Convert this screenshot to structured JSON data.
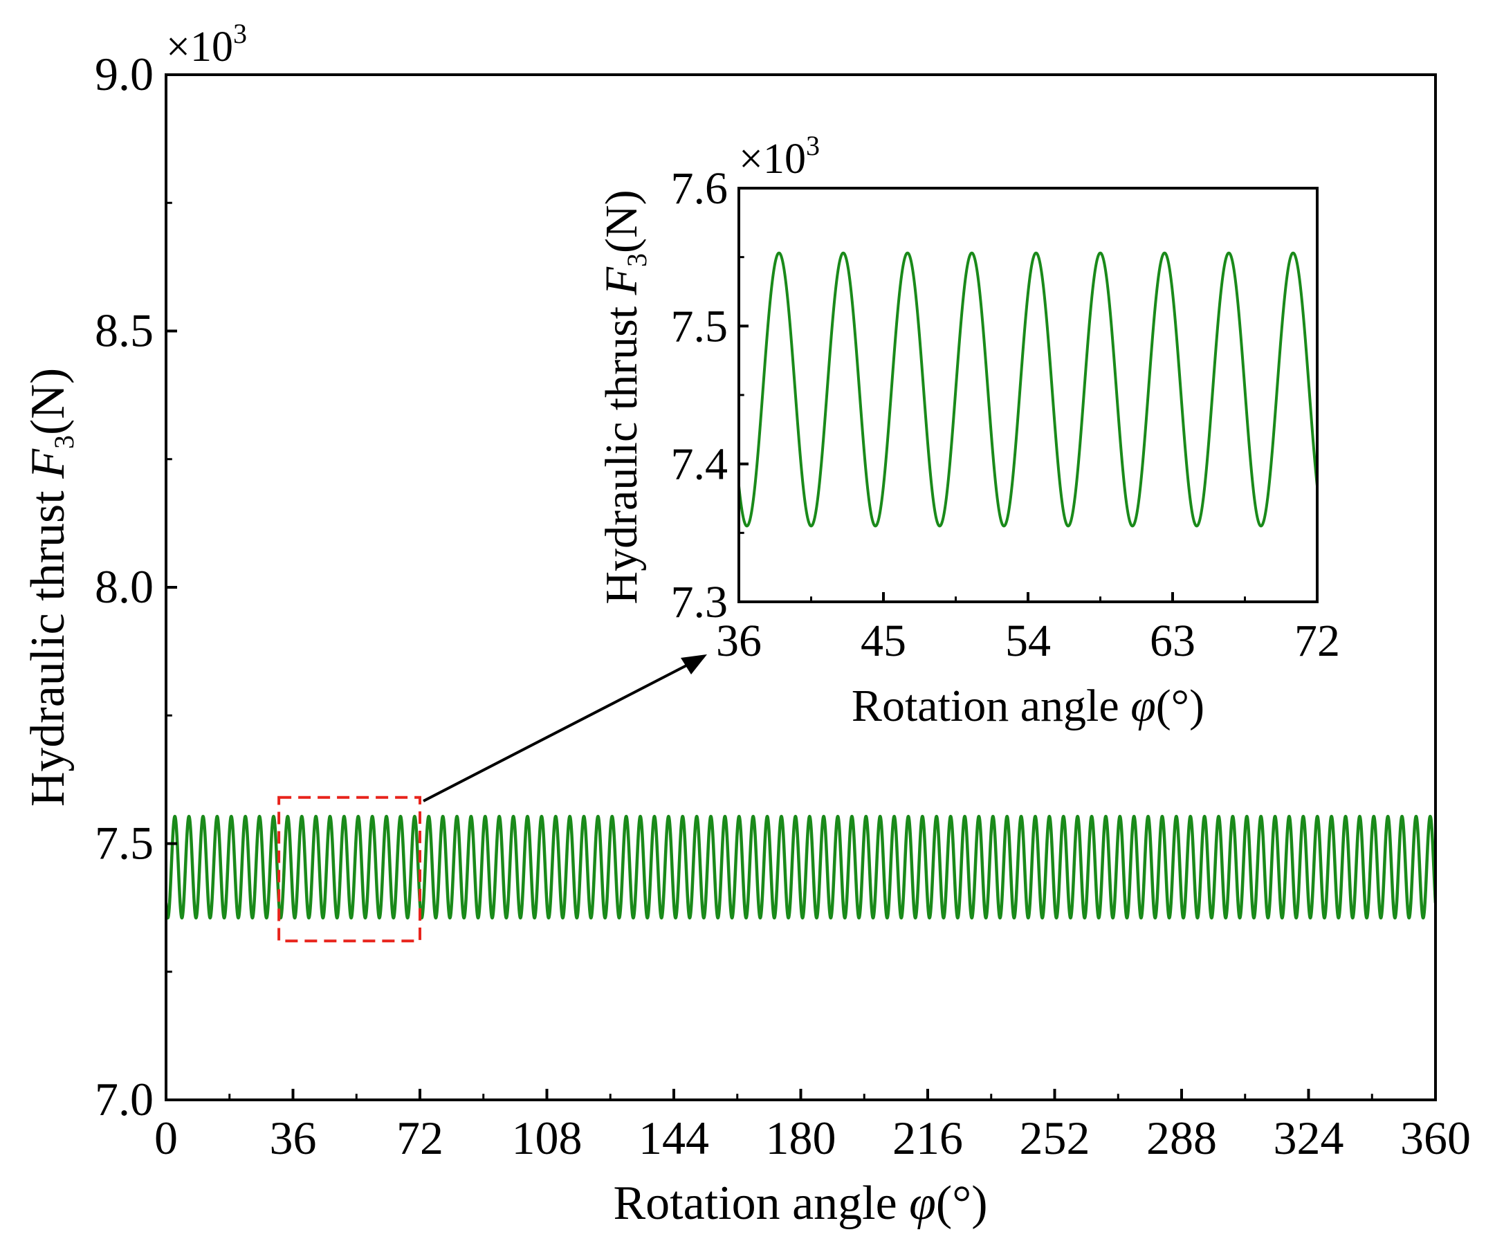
{
  "chart_data": [
    {
      "id": "main",
      "type": "line",
      "title": "",
      "xlabel": "Rotation angle",
      "xlabel_symbol": "φ",
      "xlabel_unit": "(°)",
      "ylabel": "Hydraulic thrust ",
      "ylabel_symbol": "F",
      "ylabel_subscript": "3",
      "ylabel_unit": "(N)",
      "y_multiplier": "×10",
      "y_multiplier_exp": "3",
      "xlim": [
        0,
        360
      ],
      "ylim": [
        7.0,
        9.0
      ],
      "xticks": [
        0,
        36,
        72,
        108,
        144,
        180,
        216,
        252,
        288,
        324,
        360
      ],
      "xtick_labels": [
        "0",
        "36",
        "72",
        "108",
        "144",
        "180",
        "216",
        "252",
        "288",
        "324",
        "360"
      ],
      "yticks": [
        7.0,
        7.5,
        8.0,
        8.5,
        9.0
      ],
      "ytick_labels": [
        "7.0",
        "7.5",
        "8.0",
        "8.5",
        "9.0"
      ],
      "series": [
        {
          "name": "F3",
          "color": "#1a8a1a",
          "function": "periodic",
          "period_deg": 4,
          "phase_deg": 2.5,
          "min": 7.355,
          "max": 7.553,
          "x_range": [
            0,
            360
          ]
        }
      ],
      "zoom_box": {
        "x_range": [
          32,
          72
        ],
        "y_range": [
          7.31,
          7.59
        ],
        "color": "#e8241c"
      }
    },
    {
      "id": "inset",
      "type": "line",
      "xlabel": "Rotation angle",
      "xlabel_symbol": "φ",
      "xlabel_unit": "(°)",
      "ylabel": "Hydraulic thrust ",
      "ylabel_symbol": "F",
      "ylabel_subscript": "3",
      "ylabel_unit": "(N)",
      "y_multiplier": "×10",
      "y_multiplier_exp": "3",
      "xlim": [
        36,
        72
      ],
      "ylim": [
        7.3,
        7.6
      ],
      "xticks": [
        36,
        45,
        54,
        63,
        72
      ],
      "xtick_labels": [
        "36",
        "45",
        "54",
        "63",
        "72"
      ],
      "yticks": [
        7.3,
        7.4,
        7.5,
        7.6
      ],
      "ytick_labels": [
        "7.3",
        "7.4",
        "7.5",
        "7.6"
      ],
      "series": [
        {
          "name": "F3",
          "color": "#1a8a1a",
          "function": "periodic",
          "period_deg": 4,
          "phase_deg": 2.5,
          "min": 7.355,
          "max": 7.553,
          "x_range": [
            36,
            72
          ]
        }
      ]
    }
  ]
}
